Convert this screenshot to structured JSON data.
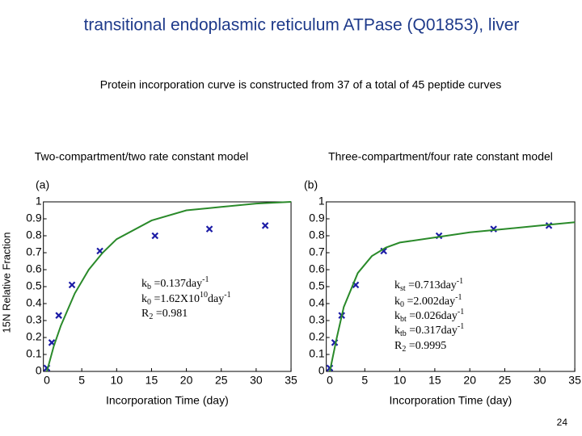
{
  "slide": {
    "title": "transitional endoplasmic reticulum ATPase (Q01853), liver",
    "subtitle": "Protein incorporation curve is constructed from 37 of a total of 45 peptide curves",
    "y_label": "15N Relative Fraction",
    "page_number": "24"
  },
  "chart_data": [
    {
      "type": "scatter",
      "title": "Two-compartment/two rate constant model",
      "panel_label": "(a)",
      "x_label": "Incorporation Time (day)",
      "xlim": [
        -0.5,
        35
      ],
      "xticks": [
        0,
        5,
        10,
        15,
        20,
        25,
        30,
        35
      ],
      "ylim": [
        0,
        1
      ],
      "yticks": [
        0,
        0.1,
        0.2,
        0.3,
        0.4,
        0.5,
        0.6,
        0.7,
        0.8,
        0.9,
        1
      ],
      "series": [
        {
          "kind": "marker",
          "color": "#1c1ca6",
          "x": [
            0,
            0.7,
            1.7,
            3.6,
            7.6,
            15.5,
            23.3,
            31.3
          ],
          "values": [
            0.02,
            0.17,
            0.33,
            0.51,
            0.71,
            0.8,
            0.84,
            0.86
          ]
        },
        {
          "kind": "line",
          "color": "#2a8a2a",
          "x": [
            0,
            1,
            2,
            4,
            6,
            8,
            10,
            15,
            20,
            25,
            30,
            35
          ],
          "values": [
            0,
            0.15,
            0.27,
            0.46,
            0.6,
            0.7,
            0.78,
            0.89,
            0.95,
            0.97,
            0.99,
            1.0
          ]
        }
      ],
      "annotations": [
        [
          {
            "text": "k"
          },
          {
            "sub": "b"
          },
          {
            "text": " =0.137day"
          },
          {
            "sup": "-1"
          }
        ],
        [
          {
            "text": "k"
          },
          {
            "sub": "0"
          },
          {
            "text": " =1.62X10"
          },
          {
            "sup": "10"
          },
          {
            "text": "day"
          },
          {
            "sup": "-1"
          }
        ],
        [
          {
            "text": "R"
          },
          {
            "sub": "2"
          },
          {
            "text": " =0.981"
          }
        ]
      ]
    },
    {
      "type": "scatter",
      "title": "Three-compartment/four rate constant model",
      "panel_label": "(b)",
      "x_label": "Incorporation Time (day)",
      "xlim": [
        -0.5,
        35
      ],
      "xticks": [
        0,
        5,
        10,
        15,
        20,
        25,
        30,
        35
      ],
      "ylim": [
        0,
        1
      ],
      "yticks": [
        0,
        0.1,
        0.2,
        0.3,
        0.4,
        0.5,
        0.6,
        0.7,
        0.8,
        0.9,
        1
      ],
      "series": [
        {
          "kind": "marker",
          "color": "#1c1ca6",
          "x": [
            0,
            0.7,
            1.7,
            3.7,
            7.7,
            15.6,
            23.4,
            31.3
          ],
          "values": [
            0.02,
            0.17,
            0.33,
            0.51,
            0.71,
            0.8,
            0.84,
            0.86
          ]
        },
        {
          "kind": "line",
          "color": "#2a8a2a",
          "x": [
            0,
            1,
            2,
            4,
            6,
            8,
            10,
            15,
            20,
            25,
            30,
            35
          ],
          "values": [
            0,
            0.2,
            0.38,
            0.58,
            0.68,
            0.73,
            0.76,
            0.79,
            0.82,
            0.84,
            0.86,
            0.88
          ]
        }
      ],
      "annotations": [
        [
          {
            "text": "k"
          },
          {
            "sub": "st"
          },
          {
            "text": " =0.713day"
          },
          {
            "sup": "-1"
          }
        ],
        [
          {
            "text": "k"
          },
          {
            "sub": "0"
          },
          {
            "text": " =2.002day"
          },
          {
            "sup": "-1"
          }
        ],
        [
          {
            "text": "k"
          },
          {
            "sub": "bt"
          },
          {
            "text": " =0.026day"
          },
          {
            "sup": "-1"
          }
        ],
        [
          {
            "text": "k"
          },
          {
            "sub": "tb"
          },
          {
            "text": " =0.317day"
          },
          {
            "sup": "-1"
          }
        ],
        [
          {
            "text": "R"
          },
          {
            "sub": "2"
          },
          {
            "text": " =0.9995"
          }
        ]
      ]
    }
  ]
}
